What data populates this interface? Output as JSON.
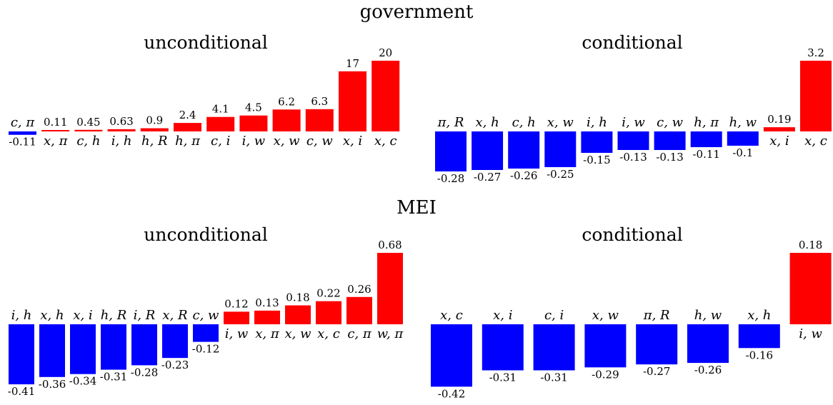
{
  "sections": {
    "government": "government",
    "mei": "MEI"
  },
  "colors": {
    "positive": "#ff0000",
    "negative": "#0000ff"
  },
  "chart_data": [
    {
      "type": "bar",
      "section": "government",
      "title": "unconditional",
      "categories": [
        "c, π",
        "x, π",
        "c, h",
        "i, h",
        "h, R",
        "h, π",
        "c, i",
        "i, w",
        "x, w",
        "c, w",
        "x, i",
        "x, c"
      ],
      "values": [
        -0.11,
        0.11,
        0.45,
        0.63,
        0.9,
        2.4,
        4.1,
        4.5,
        6.2,
        6.3,
        17,
        20
      ],
      "value_labels": [
        "-0.11",
        "0.11",
        "0.45",
        "0.63",
        "0.9",
        "2.4",
        "4.1",
        "4.5",
        "6.2",
        "6.3",
        "17",
        "20"
      ]
    },
    {
      "type": "bar",
      "section": "government",
      "title": "conditional",
      "categories": [
        "π, R",
        "x, h",
        "c, h",
        "x, w",
        "i, h",
        "i, w",
        "c, w",
        "h, π",
        "h, w",
        "x, i",
        "x, c"
      ],
      "values": [
        -0.28,
        -0.27,
        -0.26,
        -0.25,
        -0.15,
        -0.13,
        -0.13,
        -0.11,
        -0.1,
        0.19,
        3.2
      ],
      "value_labels": [
        "-0.28",
        "-0.27",
        "-0.26",
        "-0.25",
        "-0.15",
        "-0.13",
        "-0.13",
        "-0.11",
        "-0.1",
        "0.19",
        "3.2"
      ]
    },
    {
      "type": "bar",
      "section": "MEI",
      "title": "unconditional",
      "categories": [
        "i, h",
        "x, h",
        "x, i",
        "h, R",
        "i, R",
        "x, R",
        "c, w",
        "i, w",
        "x, π",
        "x, w",
        "x, c",
        "c, π",
        "w, π"
      ],
      "values": [
        -0.41,
        -0.36,
        -0.34,
        -0.31,
        -0.28,
        -0.23,
        -0.12,
        0.12,
        0.13,
        0.18,
        0.22,
        0.26,
        0.68
      ],
      "value_labels": [
        "-0.41",
        "-0.36",
        "-0.34",
        "-0.31",
        "-0.28",
        "-0.23",
        "-0.12",
        "0.12",
        "0.13",
        "0.18",
        "0.22",
        "0.26",
        "0.68"
      ]
    },
    {
      "type": "bar",
      "section": "MEI",
      "title": "conditional",
      "categories": [
        "x, c",
        "x, i",
        "c, i",
        "x, w",
        "π, R",
        "h, w",
        "x, h",
        "i, w"
      ],
      "values": [
        -0.42,
        -0.31,
        -0.31,
        -0.29,
        -0.27,
        -0.26,
        -0.16,
        0.18
      ],
      "value_labels": [
        "-0.42",
        "-0.31",
        "-0.31",
        "-0.29",
        "-0.27",
        "-0.26",
        "-0.16",
        "0.18"
      ]
    }
  ]
}
